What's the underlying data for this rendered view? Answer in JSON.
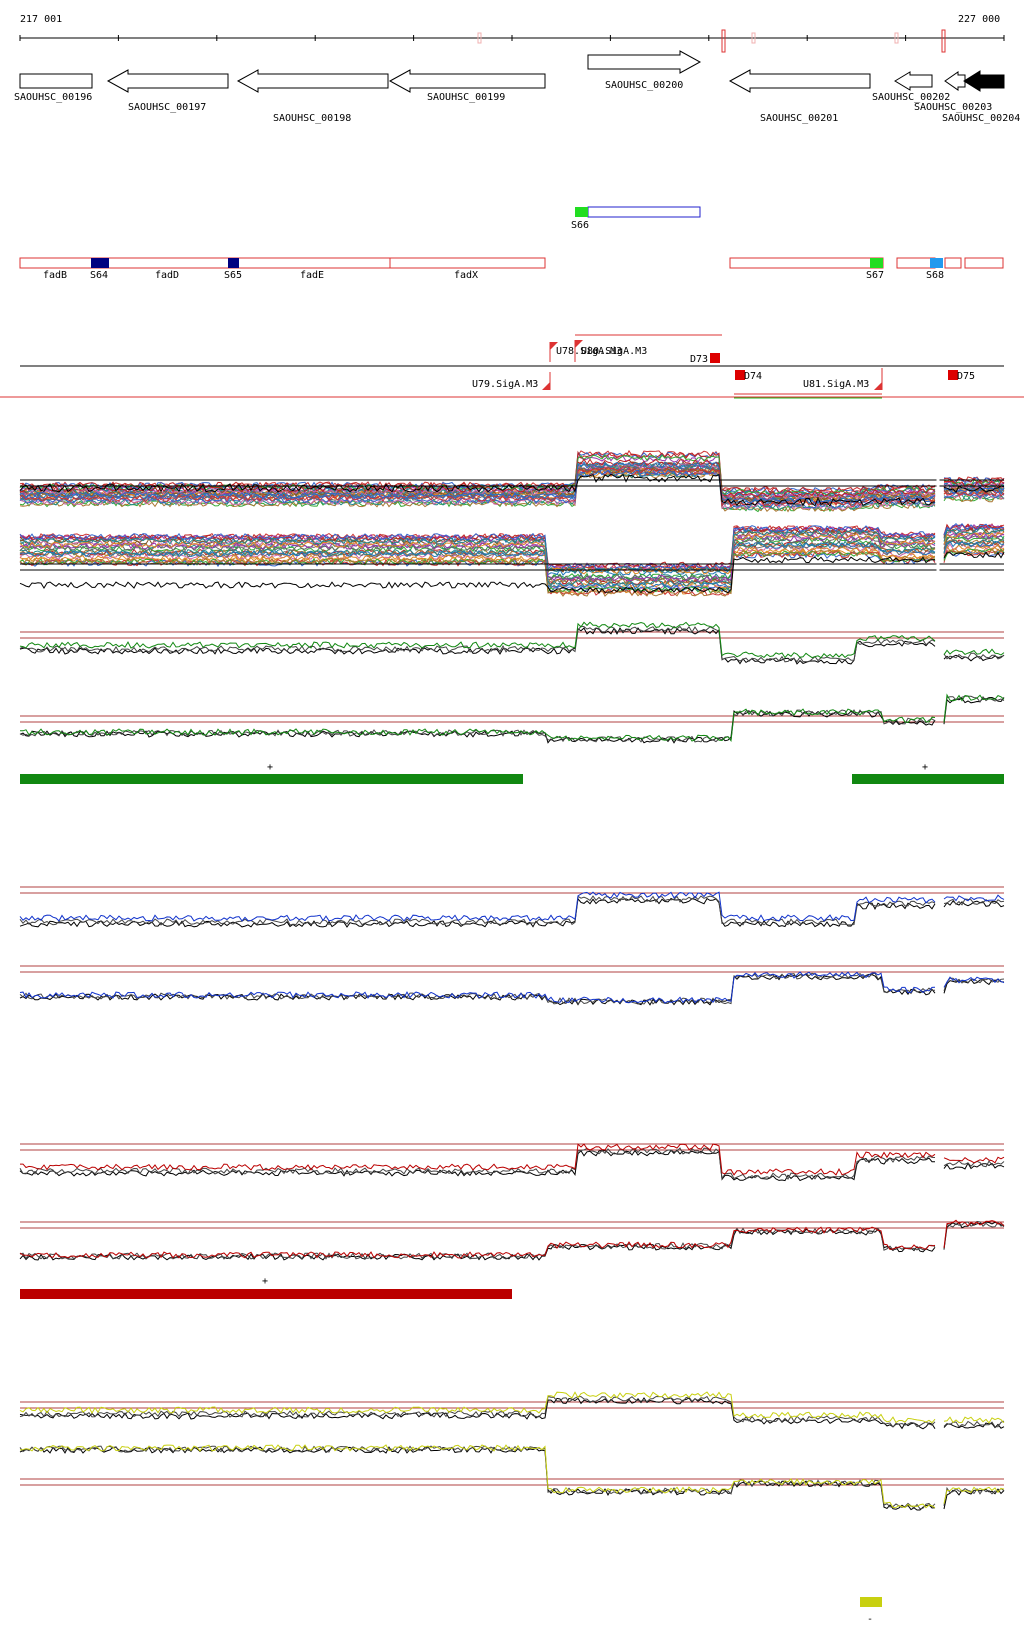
{
  "genome": {
    "start_label": "217 001",
    "end_label": "227 000"
  },
  "genes": [
    {
      "id": "SAOUHSC_00196",
      "strand": "+",
      "style": "open"
    },
    {
      "id": "SAOUHSC_00197",
      "strand": "-",
      "style": "open"
    },
    {
      "id": "SAOUHSC_00198",
      "strand": "-",
      "style": "open"
    },
    {
      "id": "SAOUHSC_00199",
      "strand": "-",
      "style": "open"
    },
    {
      "id": "SAOUHSC_00200",
      "strand": "+",
      "style": "open"
    },
    {
      "id": "SAOUHSC_00201",
      "strand": "-",
      "style": "open"
    },
    {
      "id": "SAOUHSC_00202",
      "strand": "-",
      "style": "open"
    },
    {
      "id": "SAOUHSC_00203",
      "strand": "-",
      "style": "open"
    },
    {
      "id": "SAOUHSC_00204",
      "strand": "-",
      "style": "filled"
    }
  ],
  "segments_forward": [
    {
      "id": "S66",
      "color": "#22dd22"
    }
  ],
  "segments_reverse": {
    "names": [
      "fadB",
      "fadD",
      "fadE",
      "fadX"
    ],
    "markers": [
      {
        "id": "S64",
        "color": "#000080"
      },
      {
        "id": "S65",
        "color": "#000080"
      },
      {
        "id": "S67",
        "color": "#22dd22"
      },
      {
        "id": "S68",
        "color": "#2299ee"
      }
    ]
  },
  "promoters": [
    "U78.SigA.M3",
    "U80.SigA.M3",
    "U79.SigA.M3",
    "U81.SigA.M3"
  ],
  "terminators": [
    "D73",
    "D74",
    "D75"
  ],
  "tracks": {
    "green": {
      "color": "#118811",
      "marks": [
        "+",
        "+"
      ]
    },
    "blue": {
      "color": "#1133cc"
    },
    "red": {
      "color": "#bb0000",
      "marks": [
        "+"
      ]
    },
    "yellow": {
      "color": "#c8d010",
      "marks": [
        "-"
      ]
    }
  },
  "icons": {
    "forward_gene": "open-right-arrow-icon",
    "reverse_gene": "open-left-arrow-icon",
    "filled_gene": "filled-left-arrow-icon",
    "promoter": "promoter-flag-icon",
    "terminator": "terminator-block-icon"
  }
}
